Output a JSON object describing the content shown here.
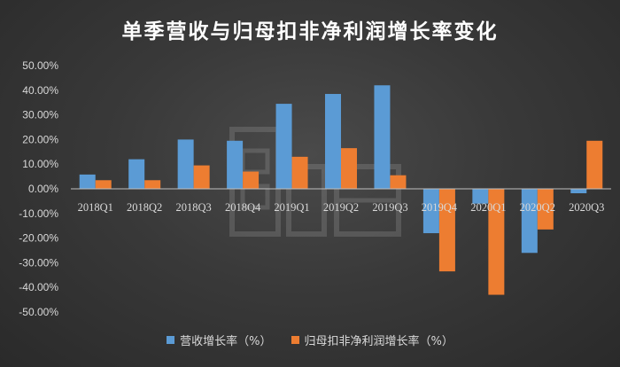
{
  "chart_data": {
    "type": "bar",
    "title": "单季营收与归母扣非净利润增长率变化",
    "categories": [
      "2018Q1",
      "2018Q2",
      "2018Q3",
      "2018Q4",
      "2019Q1",
      "2019Q2",
      "2019Q3",
      "2019Q4",
      "2020Q1",
      "2020Q2",
      "2020Q3"
    ],
    "series": [
      {
        "name": "营收增长率（%）",
        "color": "#5b9bd5",
        "values": [
          5.8,
          12.0,
          20.0,
          19.5,
          34.5,
          38.5,
          42.0,
          -18.0,
          -6.0,
          -26.0,
          -1.8
        ]
      },
      {
        "name": "归母扣非净利润增长率（%）",
        "color": "#ed7d31",
        "values": [
          3.5,
          3.5,
          9.5,
          7.0,
          13.0,
          16.5,
          5.5,
          -33.5,
          -43.0,
          -16.5,
          19.5
        ]
      }
    ],
    "ylim": [
      -50,
      50
    ],
    "yticks": [
      50,
      40,
      30,
      20,
      10,
      0,
      -10,
      -20,
      -30,
      -40,
      -50
    ],
    "ytick_labels": [
      "50.00%",
      "40.00%",
      "30.00%",
      "20.00%",
      "10.00%",
      "0.00%",
      "-10.00%",
      "-20.00%",
      "-30.00%",
      "-40.00%",
      "-50.00%"
    ],
    "legend_position": "bottom",
    "grid": false
  }
}
